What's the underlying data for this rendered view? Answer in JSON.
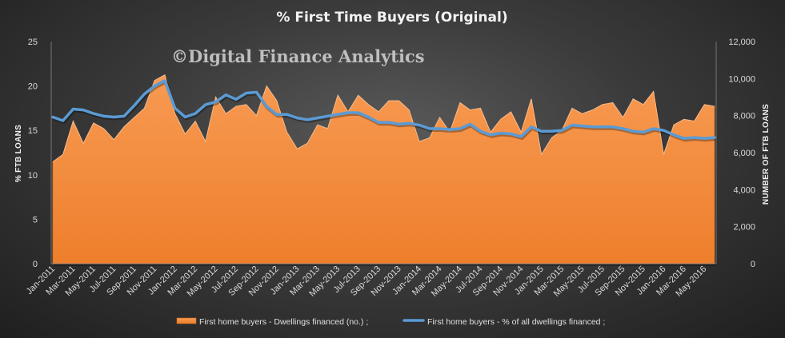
{
  "watermark": "©Digital Finance Analytics",
  "chart_data": {
    "type": "area+line",
    "title": "% First Time Buyers (Original)",
    "ylabel_left": "% FTB LOANS",
    "ylabel_right": "NUMBER OF FTB LOANS",
    "yticks_left": [
      "0",
      "5",
      "10",
      "15",
      "20",
      "25"
    ],
    "yticks_right": [
      "0",
      "2,000",
      "4,000",
      "6,000",
      "8,000",
      "10,000",
      "12,000"
    ],
    "ylim_left": [
      0,
      25
    ],
    "ylim_right": [
      0,
      12000
    ],
    "x_tick_labels": [
      "Jan-2011",
      "Mar-2011",
      "May-2011",
      "Jul-2011",
      "Sep-2011",
      "Nov-2011",
      "Jan-2012",
      "Mar-2012",
      "May-2012",
      "Jul-2012",
      "Sep-2012",
      "Nov-2012",
      "Jan-2013",
      "Mar-2013",
      "May-2013",
      "Jul-2013",
      "Sep-2013",
      "Nov-2013",
      "Jan-2014",
      "Mar-2014",
      "May-2014",
      "Jul-2014",
      "Sep-2014",
      "Nov-2014",
      "Jan-2015",
      "Mar-2015",
      "May-2015",
      "Jul-2015",
      "Sep-2015",
      "Nov-2015",
      "Jan-2016",
      "Mar-2016",
      "May-2016"
    ],
    "x": [
      "Jan-2011",
      "Feb-2011",
      "Mar-2011",
      "Apr-2011",
      "May-2011",
      "Jun-2011",
      "Jul-2011",
      "Aug-2011",
      "Sep-2011",
      "Oct-2011",
      "Nov-2011",
      "Dec-2011",
      "Jan-2012",
      "Feb-2012",
      "Mar-2012",
      "Apr-2012",
      "May-2012",
      "Jun-2012",
      "Jul-2012",
      "Aug-2012",
      "Sep-2012",
      "Oct-2012",
      "Nov-2012",
      "Dec-2012",
      "Jan-2013",
      "Feb-2013",
      "Mar-2013",
      "Apr-2013",
      "May-2013",
      "Jun-2013",
      "Jul-2013",
      "Aug-2013",
      "Sep-2013",
      "Oct-2013",
      "Nov-2013",
      "Dec-2013",
      "Jan-2014",
      "Feb-2014",
      "Mar-2014",
      "Apr-2014",
      "May-2014",
      "Jun-2014",
      "Jul-2014",
      "Aug-2014",
      "Sep-2014",
      "Oct-2014",
      "Nov-2014",
      "Dec-2014",
      "Jan-2015",
      "Feb-2015",
      "Mar-2015",
      "Apr-2015",
      "May-2015",
      "Jun-2015",
      "Jul-2015",
      "Aug-2015",
      "Sep-2015",
      "Oct-2015",
      "Nov-2015",
      "Dec-2015",
      "Jan-2016",
      "Feb-2016",
      "Mar-2016",
      "Apr-2016",
      "May-2016",
      "Jun-2016"
    ],
    "series": [
      {
        "name": "First home buyers - Dwellings financed (no.) ;",
        "type": "area",
        "axis": "right",
        "color": "#f58a3c",
        "values": [
          5500,
          5900,
          7700,
          6500,
          7600,
          7300,
          6700,
          7400,
          7900,
          8400,
          9900,
          10200,
          8100,
          7000,
          7700,
          6600,
          9000,
          8100,
          8500,
          8600,
          8000,
          9600,
          8800,
          7100,
          6200,
          6500,
          7500,
          7300,
          9100,
          8200,
          9100,
          8600,
          8200,
          8800,
          8800,
          8300,
          6600,
          6800,
          7900,
          7100,
          8700,
          8300,
          8400,
          7100,
          7800,
          8200,
          7100,
          8900,
          5900,
          6800,
          7200,
          8400,
          8100,
          8300,
          8600,
          8700,
          7900,
          8900,
          8600,
          9300,
          5900,
          7500,
          7800,
          7700,
          8600,
          8500
        ]
      },
      {
        "name": "First home buyers - % of all dwellings financed ;",
        "type": "line",
        "axis": "left",
        "color": "#5b9bd5",
        "values": [
          16.5,
          16.1,
          17.4,
          17.3,
          16.9,
          16.6,
          16.5,
          16.6,
          17.8,
          19.1,
          20.0,
          20.6,
          17.5,
          16.5,
          16.9,
          17.9,
          18.2,
          19.0,
          18.5,
          19.2,
          19.3,
          17.7,
          16.8,
          16.8,
          16.4,
          16.2,
          16.4,
          16.6,
          16.8,
          17.0,
          17.0,
          16.5,
          15.9,
          15.9,
          15.7,
          15.8,
          15.6,
          15.2,
          15.2,
          15.1,
          15.2,
          15.7,
          14.9,
          14.5,
          14.7,
          14.6,
          14.3,
          15.4,
          14.9,
          14.9,
          15.0,
          15.6,
          15.5,
          15.4,
          15.4,
          15.4,
          15.2,
          14.9,
          14.8,
          15.2,
          15.0,
          14.5,
          14.1,
          14.2,
          14.1,
          14.2
        ]
      }
    ],
    "legend_position": "bottom",
    "grid": false
  }
}
